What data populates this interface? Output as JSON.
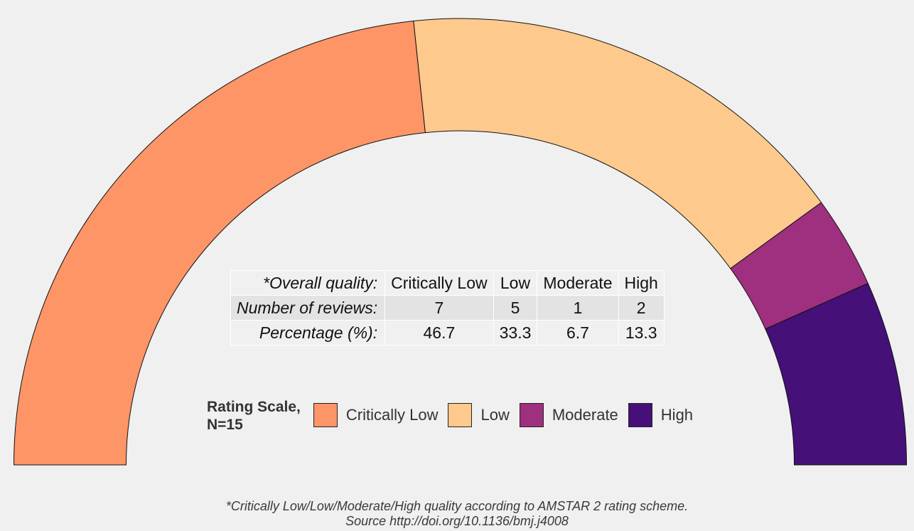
{
  "chart_data": {
    "type": "pie",
    "subtype": "semi-donut",
    "categories": [
      "Critically Low",
      "Low",
      "Moderate",
      "High"
    ],
    "values": [
      7,
      5,
      1,
      2
    ],
    "percentages": [
      46.7,
      33.3,
      6.7,
      13.3
    ],
    "colors": [
      "#fd9567",
      "#fec98d",
      "#9f2f7f",
      "#451077"
    ],
    "total": 15
  },
  "table": {
    "header_label": "*Overall quality:",
    "row1_label": "Number of reviews:",
    "row2_label": "Percentage (%):",
    "columns": [
      "Critically Low",
      "Low",
      "Moderate",
      "High"
    ],
    "counts": [
      "7",
      "5",
      "1",
      "2"
    ],
    "percents": [
      "46.7",
      "33.3",
      "6.7",
      "13.3"
    ]
  },
  "legend": {
    "title_line1": "Rating Scale,",
    "title_line2": "N=15",
    "items": [
      "Critically Low",
      "Low",
      "Moderate",
      "High"
    ]
  },
  "footnote": {
    "line1": "*Critically Low/Low/Moderate/High quality according to AMSTAR 2 rating scheme.",
    "line2": "Source http://doi.org/10.1136/bmj.j4008"
  }
}
